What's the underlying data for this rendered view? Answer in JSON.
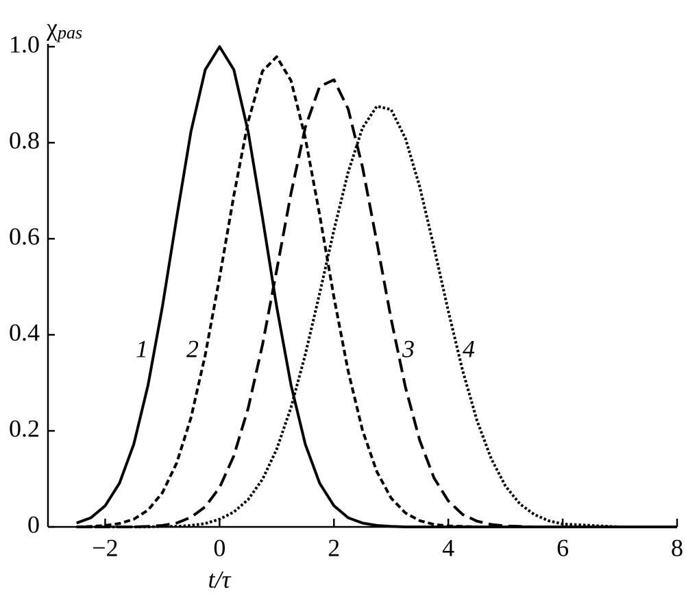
{
  "chart_data": {
    "type": "line",
    "ylabel": {
      "symbol": "χ",
      "subscript": "pas"
    },
    "xlabel": "t/τ",
    "x": [
      -2.5,
      -2.25,
      -2,
      -1.75,
      -1.5,
      -1.25,
      -1,
      -0.75,
      -0.5,
      -0.25,
      0,
      0.25,
      0.5,
      0.75,
      1,
      1.25,
      1.5,
      1.75,
      2,
      2.25,
      2.5,
      2.75,
      3,
      3.25,
      3.5,
      3.75,
      4,
      4.25,
      4.5,
      4.75,
      5,
      5.25,
      5.5,
      5.75,
      6,
      7,
      8
    ],
    "series": [
      {
        "name": "1",
        "color": "#000000",
        "linestyle": "solid",
        "values": [
          0.008,
          0.019,
          0.044,
          0.091,
          0.172,
          0.295,
          0.458,
          0.644,
          0.823,
          0.952,
          1,
          0.952,
          0.823,
          0.644,
          0.458,
          0.295,
          0.172,
          0.091,
          0.044,
          0.019,
          0.008,
          0.003,
          0.001,
          0,
          0,
          0,
          0,
          0,
          0,
          0,
          0,
          0,
          0,
          0,
          0,
          0,
          0
        ]
      },
      {
        "name": "2",
        "color": "#000000",
        "linestyle": "short-dash",
        "values": [
          0,
          0.001,
          0.003,
          0.007,
          0.016,
          0.035,
          0.071,
          0.133,
          0.227,
          0.358,
          0.519,
          0.69,
          0.844,
          0.949,
          0.979,
          0.929,
          0.81,
          0.65,
          0.478,
          0.324,
          0.201,
          0.115,
          0.06,
          0.029,
          0.013,
          0.005,
          0.002,
          0.001,
          0,
          0,
          0,
          0,
          0,
          0,
          0,
          0,
          0
        ]
      },
      {
        "name": "3",
        "color": "#000000",
        "linestyle": "long-dash",
        "values": [
          0,
          0,
          0,
          0,
          0,
          0.001,
          0.003,
          0.008,
          0.02,
          0.042,
          0.082,
          0.148,
          0.247,
          0.379,
          0.535,
          0.695,
          0.832,
          0.917,
          0.931,
          0.87,
          0.749,
          0.593,
          0.433,
          0.291,
          0.18,
          0.102,
          0.054,
          0.026,
          0.012,
          0.005,
          0.002,
          0.001,
          0,
          0,
          0,
          0,
          0
        ]
      },
      {
        "name": "4",
        "color": "#000000",
        "linestyle": "dotted",
        "values": [
          0,
          0,
          0,
          0,
          0,
          0,
          0.001,
          0.001,
          0.003,
          0.007,
          0.016,
          0.031,
          0.057,
          0.099,
          0.162,
          0.249,
          0.359,
          0.486,
          0.618,
          0.739,
          0.831,
          0.876,
          0.869,
          0.809,
          0.708,
          0.582,
          0.449,
          0.326,
          0.222,
          0.142,
          0.085,
          0.048,
          0.026,
          0.013,
          0.006,
          0,
          0
        ]
      }
    ],
    "xlim": [
      -3,
      8
    ],
    "ylim": [
      0,
      1
    ],
    "xticks": [
      {
        "value": -2,
        "label": "−2"
      },
      0,
      2,
      4,
      6,
      8
    ],
    "yticks": [
      0,
      0.2,
      0.4,
      0.6,
      0.8,
      {
        "value": 1,
        "label": "1.0"
      }
    ],
    "grid": false
  }
}
